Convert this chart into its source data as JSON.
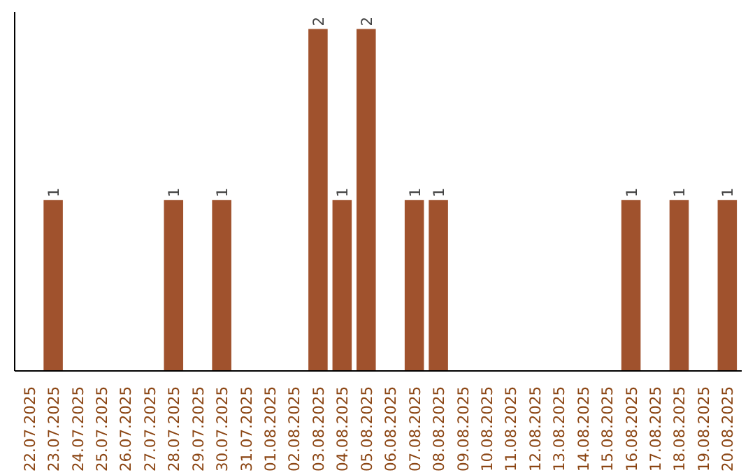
{
  "chart_data": {
    "type": "bar",
    "categories": [
      "22.07.2025",
      "23.07.2025",
      "24.07.2025",
      "25.07.2025",
      "26.07.2025",
      "27.07.2025",
      "28.07.2025",
      "29.07.2025",
      "30.07.2025",
      "31.07.2025",
      "01.08.2025",
      "02.08.2025",
      "03.08.2025",
      "04.08.2025",
      "05.08.2025",
      "06.08.2025",
      "07.08.2025",
      "08.08.2025",
      "09.08.2025",
      "10.08.2025",
      "11.08.2025",
      "12.08.2025",
      "13.08.2025",
      "14.08.2025",
      "15.08.2025",
      "16.08.2025",
      "17.08.2025",
      "18.08.2025",
      "19.08.2025",
      "20.08.2025"
    ],
    "values": [
      0,
      1,
      0,
      0,
      0,
      0,
      1,
      0,
      1,
      0,
      0,
      0,
      2,
      1,
      2,
      0,
      1,
      1,
      0,
      0,
      0,
      0,
      0,
      0,
      0,
      1,
      0,
      1,
      0,
      1
    ],
    "value_labels": [
      null,
      "1",
      null,
      null,
      null,
      null,
      "1",
      null,
      "1",
      null,
      null,
      null,
      "2",
      "1",
      "2",
      null,
      "1",
      "1",
      null,
      null,
      null,
      null,
      null,
      null,
      null,
      "1",
      null,
      "1",
      null,
      "1"
    ],
    "color": "#a0522d",
    "grid": false
  }
}
